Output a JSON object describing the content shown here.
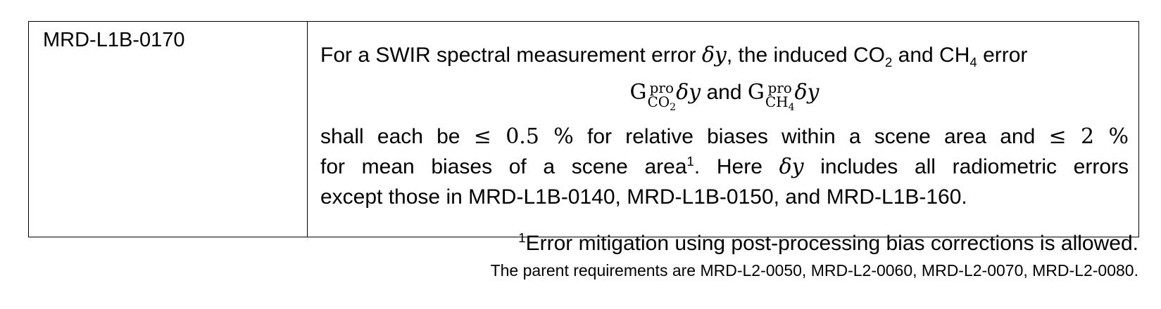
{
  "requirement": {
    "id": "MRD-L1B-0170",
    "line1": {
      "pre": "For a SWIR spectral measurement error ",
      "delta": "δy",
      "mid": ", the induced CO",
      "sub1": "2",
      "and": " and CH",
      "sub2": "4",
      "post": " error"
    },
    "formula": {
      "g": "G",
      "sup": "pro",
      "sub_co2": "CO",
      "sub_co2_n": "2",
      "sub_ch4": "CH",
      "sub_ch4_n": "4",
      "delta": "δy",
      "and": " and "
    },
    "line3": {
      "pre": "shall each be ",
      "le": "≤ 0.5 %",
      "mid": " for relative biases within a scene area and ",
      "le2": "≤ 2 %"
    },
    "line4": {
      "pre": "for mean biases of a scene area",
      "sup": "1",
      "mid": ". Here ",
      "delta": "δy",
      "post": " includes all radiometric errors"
    },
    "line5": "except those in MRD-L1B-0140, MRD-L1B-0150, and MRD-L1B-160."
  },
  "footnote": {
    "mark": "1",
    "text": "Error mitigation using post-processing bias corrections is allowed."
  },
  "parent_note": "The parent requirements are MRD-L2-0050, MRD-L2-0060, MRD-L2-0070, MRD-L2-0080."
}
